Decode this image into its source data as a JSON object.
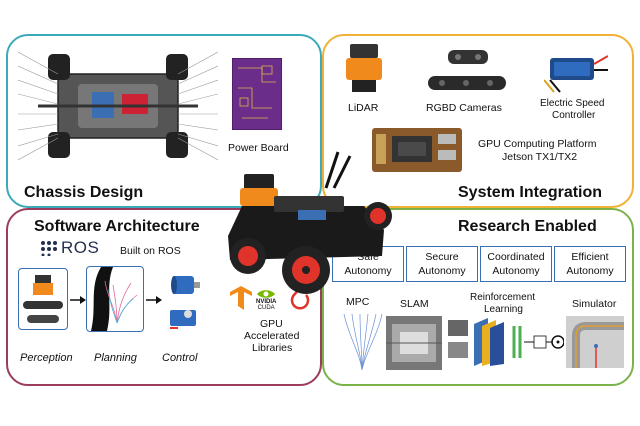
{
  "chassis": {
    "title": "Chassis Design",
    "power_board_label": "Power Board"
  },
  "system": {
    "title": "System Integration",
    "lidar_label": "LiDAR",
    "rgbd_label": "RGBD Cameras",
    "esc_label_1": "Electric Speed",
    "esc_label_2": "Controller",
    "gpu_label_1": "GPU Computing Platform",
    "gpu_label_2": "Jetson TX1/TX2"
  },
  "software": {
    "title": "Software Architecture",
    "ros_logo_text": "ROS",
    "built_on_label": "Built on ROS",
    "perception_label": "Perception",
    "planning_label": "Planning",
    "control_label": "Control",
    "nvidia_text": "NVIDIA",
    "cuda_text": "CUDA",
    "gpu_lib_1": "GPU",
    "gpu_lib_2": "Accelerated",
    "gpu_lib_3": "Libraries"
  },
  "research": {
    "title": "Research Enabled",
    "tags": [
      {
        "line1": "Safe",
        "line2": "Autonomy"
      },
      {
        "line1": "Secure",
        "line2": "Autonomy"
      },
      {
        "line1": "Coordinated",
        "line2": "Autonomy"
      },
      {
        "line1": "Efficient",
        "line2": "Autonomy"
      }
    ],
    "mpc_label": "MPC",
    "slam_label": "SLAM",
    "rl_label_1": "Reinforcement",
    "rl_label_2": "Learning",
    "simulator_label": "Simulator"
  },
  "colors": {
    "chassis_border": "#3aa9b9",
    "system_border": "#f1b136",
    "software_border": "#9b3d5a",
    "research_border": "#7bb24a",
    "tag_border": "#3b6fb4",
    "wheel_red": "#e0342b"
  }
}
